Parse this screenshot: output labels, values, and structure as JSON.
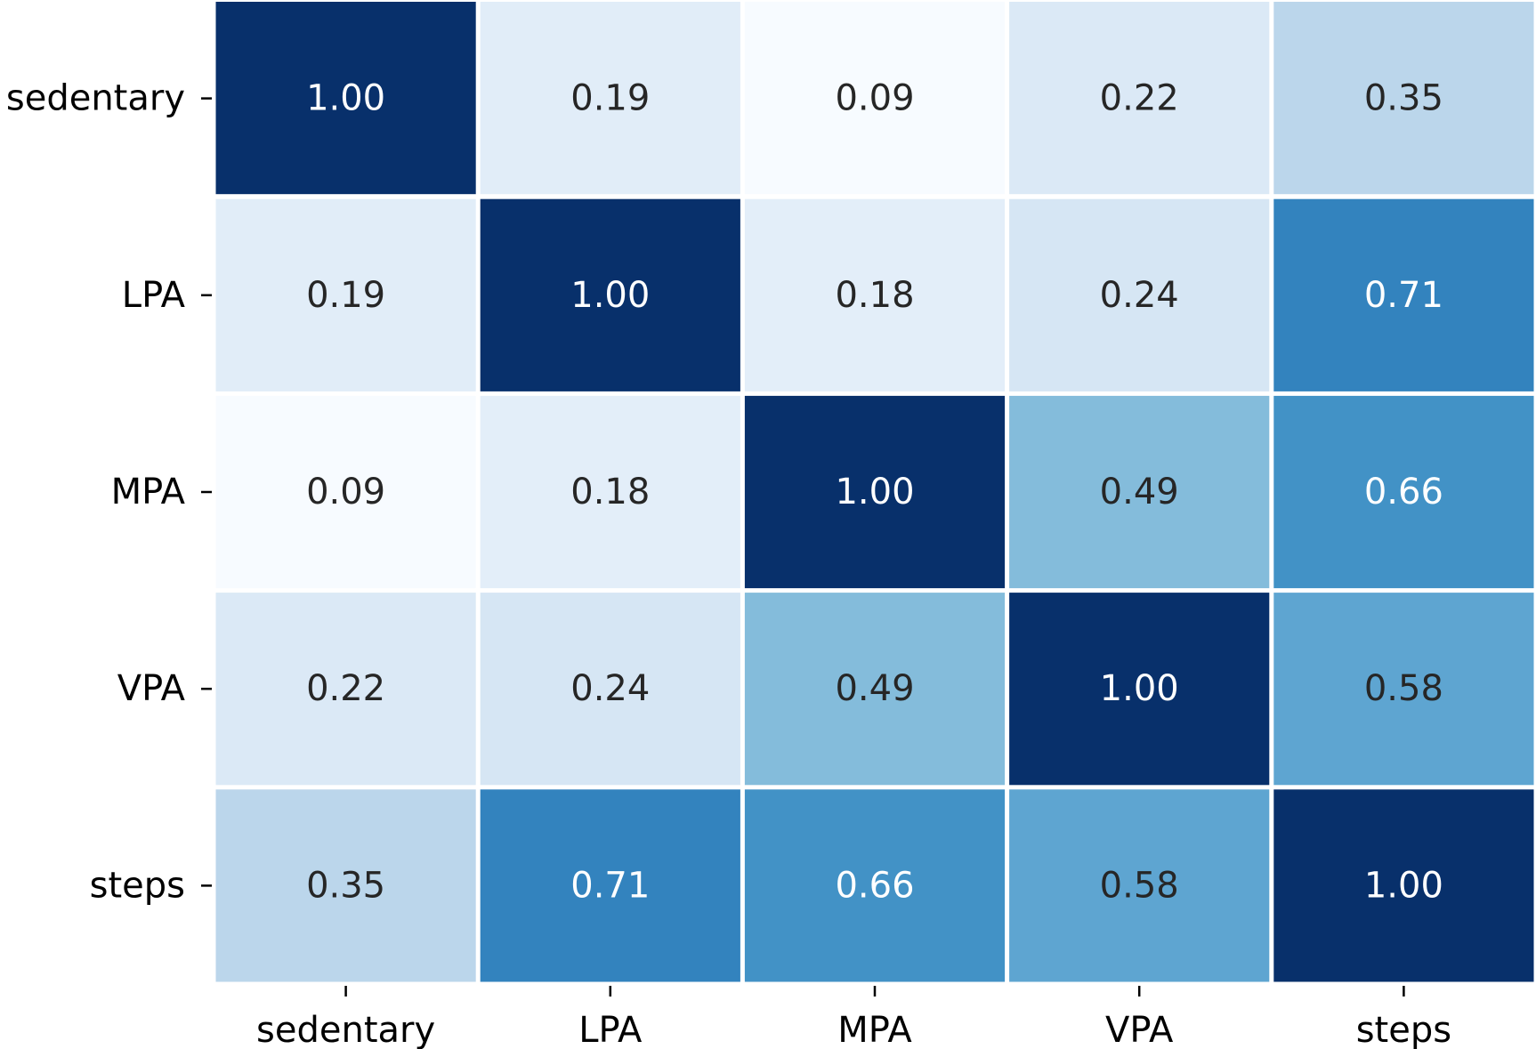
{
  "chart_data": {
    "type": "heatmap",
    "title": "",
    "xlabel": "",
    "ylabel": "",
    "x_categories": [
      "sedentary",
      "LPA",
      "MPA",
      "VPA",
      "steps"
    ],
    "y_categories": [
      "sedentary",
      "LPA",
      "MPA",
      "VPA",
      "steps"
    ],
    "values": [
      [
        1.0,
        0.19,
        0.09,
        0.22,
        0.35
      ],
      [
        0.19,
        1.0,
        0.18,
        0.24,
        0.71
      ],
      [
        0.09,
        0.18,
        1.0,
        0.49,
        0.66
      ],
      [
        0.22,
        0.24,
        0.49,
        1.0,
        0.58
      ],
      [
        0.35,
        0.71,
        0.66,
        0.58,
        1.0
      ]
    ],
    "value_format": "0.00",
    "colormap": "Blues",
    "color_range": [
      0.09,
      1.0
    ],
    "colorbar": false,
    "grid": false,
    "cell_border_color": "#ffffff"
  }
}
